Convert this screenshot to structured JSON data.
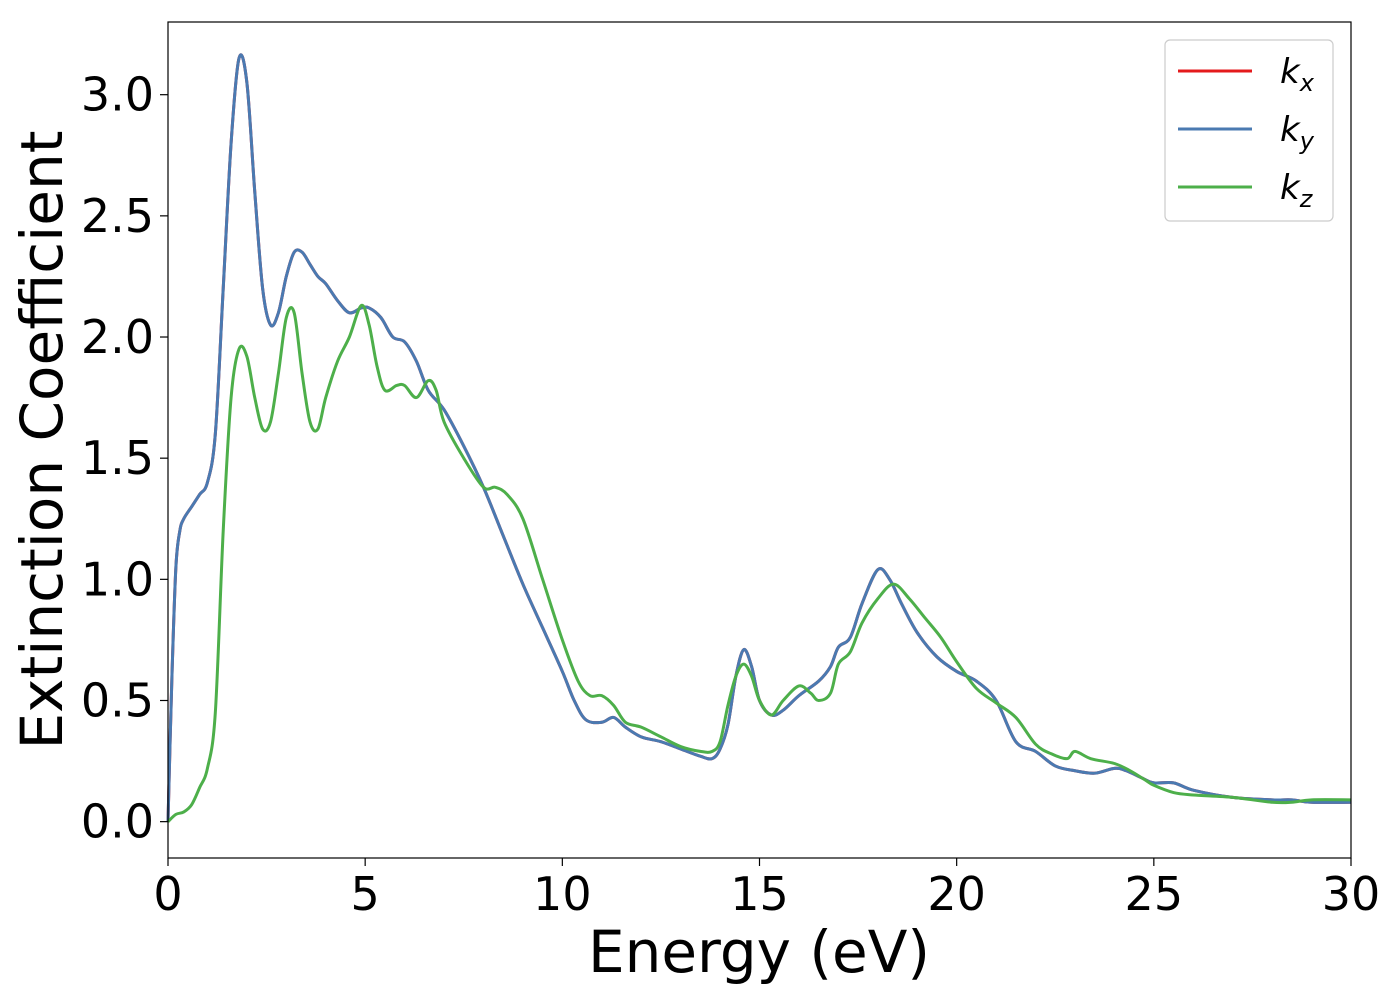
{
  "chart_data": {
    "type": "line",
    "title": "",
    "xlabel": "Energy (eV)",
    "ylabel": "Extinction Coefficient",
    "xlim": [
      0,
      30
    ],
    "ylim": [
      -0.15,
      3.3
    ],
    "xticks": [
      0,
      5,
      10,
      15,
      20,
      25,
      30
    ],
    "xtick_labels": [
      "0",
      "5",
      "10",
      "15",
      "20",
      "25",
      "30"
    ],
    "yticks": [
      0.0,
      0.5,
      1.0,
      1.5,
      2.0,
      2.5,
      3.0
    ],
    "ytick_labels": [
      "0.0",
      "0.5",
      "1.0",
      "1.5",
      "2.0",
      "2.5",
      "3.0"
    ],
    "grid": false,
    "legend_position": "top-right",
    "series": [
      {
        "name": "k_x",
        "label_main": "k",
        "label_sub": "x",
        "color": "#e41a1c",
        "x": [
          0,
          0.1,
          0.2,
          0.3,
          0.4,
          0.6,
          0.8,
          1.0,
          1.2,
          1.4,
          1.6,
          1.8,
          2.0,
          2.2,
          2.4,
          2.6,
          2.8,
          3.0,
          3.2,
          3.4,
          3.6,
          3.8,
          4.0,
          4.3,
          4.6,
          4.9,
          5.1,
          5.4,
          5.7,
          6.0,
          6.3,
          6.6,
          7.0,
          7.5,
          8.0,
          8.5,
          9.0,
          9.5,
          10.0,
          10.3,
          10.6,
          11.0,
          11.3,
          11.6,
          12.0,
          12.5,
          13.0,
          13.5,
          13.8,
          14.0,
          14.2,
          14.4,
          14.6,
          14.8,
          15.0,
          15.3,
          15.6,
          16.0,
          16.5,
          16.8,
          17.0,
          17.3,
          17.6,
          18.0,
          18.3,
          18.6,
          19.0,
          19.5,
          20.0,
          20.5,
          21.0,
          21.5,
          22.0,
          22.5,
          23.0,
          23.5,
          24.0,
          24.3,
          24.7,
          25.0,
          25.5,
          26.0,
          27.0,
          28.0,
          28.5,
          29.0,
          30.0
        ],
        "values": [
          0.0,
          0.6,
          1.05,
          1.2,
          1.25,
          1.3,
          1.35,
          1.4,
          1.6,
          2.2,
          2.8,
          3.15,
          3.05,
          2.6,
          2.2,
          2.05,
          2.1,
          2.25,
          2.35,
          2.35,
          2.3,
          2.25,
          2.22,
          2.15,
          2.1,
          2.12,
          2.12,
          2.08,
          2.0,
          1.98,
          1.9,
          1.78,
          1.7,
          1.55,
          1.38,
          1.18,
          0.98,
          0.8,
          0.62,
          0.5,
          0.42,
          0.41,
          0.43,
          0.39,
          0.35,
          0.33,
          0.3,
          0.27,
          0.26,
          0.3,
          0.4,
          0.6,
          0.71,
          0.64,
          0.5,
          0.44,
          0.46,
          0.52,
          0.58,
          0.64,
          0.72,
          0.76,
          0.9,
          1.04,
          1.0,
          0.9,
          0.78,
          0.68,
          0.62,
          0.58,
          0.5,
          0.33,
          0.29,
          0.23,
          0.21,
          0.2,
          0.22,
          0.21,
          0.18,
          0.16,
          0.16,
          0.13,
          0.1,
          0.09,
          0.09,
          0.08,
          0.08
        ]
      },
      {
        "name": "k_y",
        "label_main": "k",
        "label_sub": "y",
        "color": "#4a7ab1",
        "x": [
          0,
          0.1,
          0.2,
          0.3,
          0.4,
          0.6,
          0.8,
          1.0,
          1.2,
          1.4,
          1.6,
          1.8,
          2.0,
          2.2,
          2.4,
          2.6,
          2.8,
          3.0,
          3.2,
          3.4,
          3.6,
          3.8,
          4.0,
          4.3,
          4.6,
          4.9,
          5.1,
          5.4,
          5.7,
          6.0,
          6.3,
          6.6,
          7.0,
          7.5,
          8.0,
          8.5,
          9.0,
          9.5,
          10.0,
          10.3,
          10.6,
          11.0,
          11.3,
          11.6,
          12.0,
          12.5,
          13.0,
          13.5,
          13.8,
          14.0,
          14.2,
          14.4,
          14.6,
          14.8,
          15.0,
          15.3,
          15.6,
          16.0,
          16.5,
          16.8,
          17.0,
          17.3,
          17.6,
          18.0,
          18.3,
          18.6,
          19.0,
          19.5,
          20.0,
          20.5,
          21.0,
          21.5,
          22.0,
          22.5,
          23.0,
          23.5,
          24.0,
          24.3,
          24.7,
          25.0,
          25.5,
          26.0,
          27.0,
          28.0,
          28.5,
          29.0,
          30.0
        ],
        "values": [
          0.0,
          0.6,
          1.05,
          1.2,
          1.25,
          1.3,
          1.35,
          1.4,
          1.6,
          2.2,
          2.8,
          3.15,
          3.05,
          2.6,
          2.2,
          2.05,
          2.1,
          2.25,
          2.35,
          2.35,
          2.3,
          2.25,
          2.22,
          2.15,
          2.1,
          2.12,
          2.12,
          2.08,
          2.0,
          1.98,
          1.9,
          1.78,
          1.7,
          1.55,
          1.38,
          1.18,
          0.98,
          0.8,
          0.62,
          0.5,
          0.42,
          0.41,
          0.43,
          0.39,
          0.35,
          0.33,
          0.3,
          0.27,
          0.26,
          0.3,
          0.4,
          0.6,
          0.71,
          0.64,
          0.5,
          0.44,
          0.46,
          0.52,
          0.58,
          0.64,
          0.72,
          0.76,
          0.9,
          1.04,
          1.0,
          0.9,
          0.78,
          0.68,
          0.62,
          0.58,
          0.5,
          0.33,
          0.29,
          0.23,
          0.21,
          0.2,
          0.22,
          0.21,
          0.18,
          0.16,
          0.16,
          0.13,
          0.1,
          0.09,
          0.09,
          0.08,
          0.08
        ]
      },
      {
        "name": "k_z",
        "label_main": "k",
        "label_sub": "z",
        "color": "#4daf4a",
        "x": [
          0,
          0.2,
          0.4,
          0.6,
          0.8,
          1.0,
          1.2,
          1.4,
          1.6,
          1.8,
          2.0,
          2.2,
          2.4,
          2.6,
          2.8,
          3.0,
          3.2,
          3.4,
          3.6,
          3.8,
          4.0,
          4.3,
          4.6,
          4.9,
          5.1,
          5.3,
          5.5,
          5.8,
          6.0,
          6.3,
          6.6,
          6.8,
          7.0,
          7.5,
          8.0,
          8.3,
          8.6,
          9.0,
          9.5,
          10.0,
          10.4,
          10.7,
          11.0,
          11.3,
          11.6,
          12.0,
          12.5,
          13.0,
          13.5,
          13.8,
          14.0,
          14.2,
          14.4,
          14.6,
          14.8,
          15.0,
          15.3,
          15.6,
          16.0,
          16.3,
          16.5,
          16.8,
          17.0,
          17.3,
          17.6,
          18.0,
          18.4,
          18.8,
          19.2,
          19.6,
          20.0,
          20.5,
          21.0,
          21.5,
          22.0,
          22.4,
          22.8,
          23.0,
          23.4,
          24.0,
          24.4,
          24.8,
          25.0,
          25.5,
          26.0,
          27.0,
          28.0,
          28.5,
          29.0,
          30.0
        ],
        "values": [
          0.0,
          0.03,
          0.04,
          0.07,
          0.14,
          0.22,
          0.45,
          1.2,
          1.75,
          1.95,
          1.92,
          1.75,
          1.62,
          1.65,
          1.85,
          2.08,
          2.1,
          1.85,
          1.65,
          1.62,
          1.75,
          1.9,
          2.0,
          2.13,
          2.05,
          1.88,
          1.78,
          1.8,
          1.8,
          1.75,
          1.82,
          1.78,
          1.65,
          1.5,
          1.38,
          1.38,
          1.35,
          1.25,
          1.0,
          0.75,
          0.58,
          0.52,
          0.52,
          0.48,
          0.41,
          0.39,
          0.35,
          0.31,
          0.29,
          0.29,
          0.33,
          0.48,
          0.6,
          0.65,
          0.6,
          0.5,
          0.44,
          0.5,
          0.56,
          0.53,
          0.5,
          0.53,
          0.65,
          0.7,
          0.82,
          0.92,
          0.98,
          0.92,
          0.84,
          0.76,
          0.66,
          0.55,
          0.49,
          0.43,
          0.32,
          0.28,
          0.26,
          0.29,
          0.26,
          0.24,
          0.21,
          0.17,
          0.15,
          0.12,
          0.11,
          0.1,
          0.08,
          0.08,
          0.09,
          0.09
        ]
      }
    ]
  }
}
